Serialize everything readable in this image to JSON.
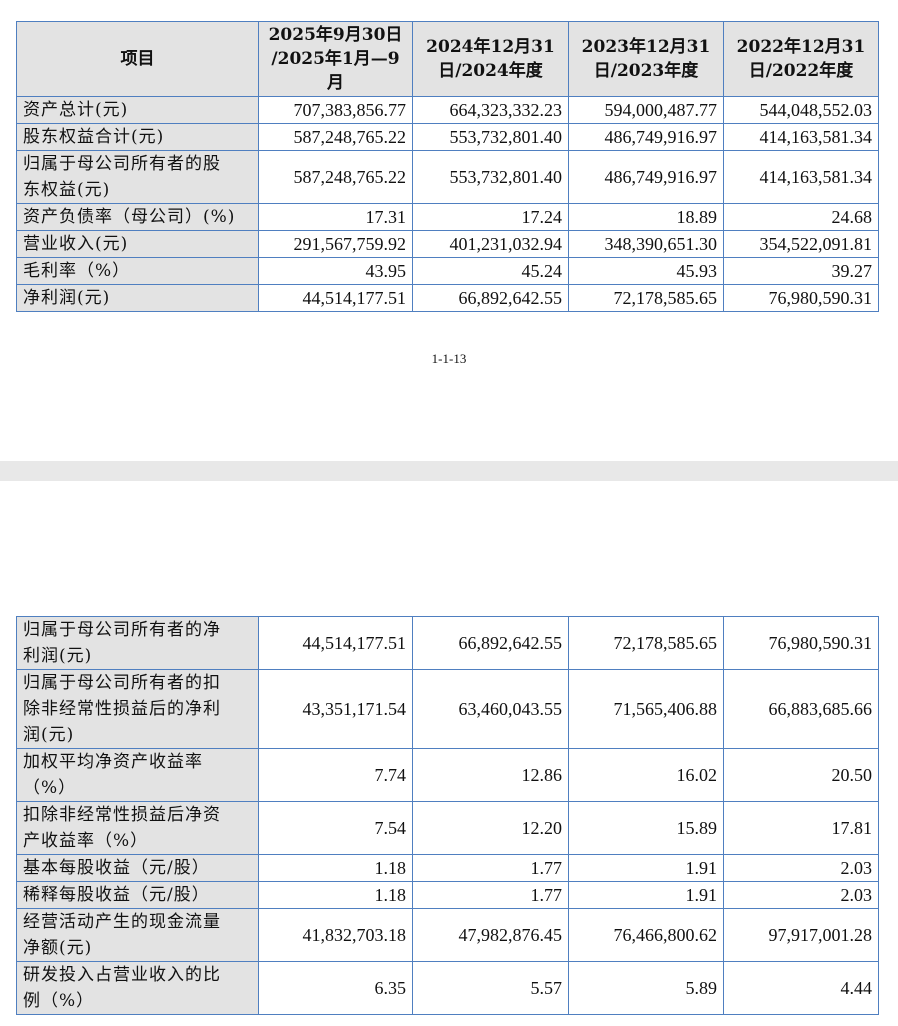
{
  "table1": {
    "headers": [
      "项目",
      "2025年9月30日\n/2025年1月—9\n月",
      "2024年12月31\n日/2024年度",
      "2023年12月31\n日/2023年度",
      "2022年12月31\n日/2022年度"
    ],
    "rows": [
      [
        "资产总计(元)",
        "707,383,856.77",
        "664,323,332.23",
        "594,000,487.77",
        "544,048,552.03"
      ],
      [
        "股东权益合计(元)",
        "587,248,765.22",
        "553,732,801.40",
        "486,749,916.97",
        "414,163,581.34"
      ],
      [
        "归属于母公司所有者的股\n东权益(元)",
        "587,248,765.22",
        "553,732,801.40",
        "486,749,916.97",
        "414,163,581.34"
      ],
      [
        "资产负债率（母公司）(%)",
        "17.31",
        "17.24",
        "18.89",
        "24.68"
      ],
      [
        "营业收入(元)",
        "291,567,759.92",
        "401,231,032.94",
        "348,390,651.30",
        "354,522,091.81"
      ],
      [
        "毛利率（%）",
        "43.95",
        "45.24",
        "45.93",
        "39.27"
      ],
      [
        "净利润(元)",
        "44,514,177.51",
        "66,892,642.55",
        "72,178,585.65",
        "76,980,590.31"
      ]
    ]
  },
  "page_number": "1-1-13",
  "table2": {
    "rows": [
      [
        "归属于母公司所有者的净\n利润(元)",
        "44,514,177.51",
        "66,892,642.55",
        "72,178,585.65",
        "76,980,590.31"
      ],
      [
        "归属于母公司所有者的扣\n除非经常性损益后的净利\n润(元)",
        "43,351,171.54",
        "63,460,043.55",
        "71,565,406.88",
        "66,883,685.66"
      ],
      [
        "加权平均净资产收益率\n（%）",
        "7.74",
        "12.86",
        "16.02",
        "20.50"
      ],
      [
        "扣除非经常性损益后净资\n产收益率（%）",
        "7.54",
        "12.20",
        "15.89",
        "17.81"
      ],
      [
        "基本每股收益（元/股）",
        "1.18",
        "1.77",
        "1.91",
        "2.03"
      ],
      [
        "稀释每股收益（元/股）",
        "1.18",
        "1.77",
        "1.91",
        "2.03"
      ],
      [
        "经营活动产生的现金流量\n净额(元)",
        "41,832,703.18",
        "47,982,876.45",
        "76,466,800.62",
        "97,917,001.28"
      ],
      [
        "研发投入占营业收入的比\n例（%）",
        "6.35",
        "5.57",
        "5.89",
        "4.44"
      ]
    ]
  }
}
